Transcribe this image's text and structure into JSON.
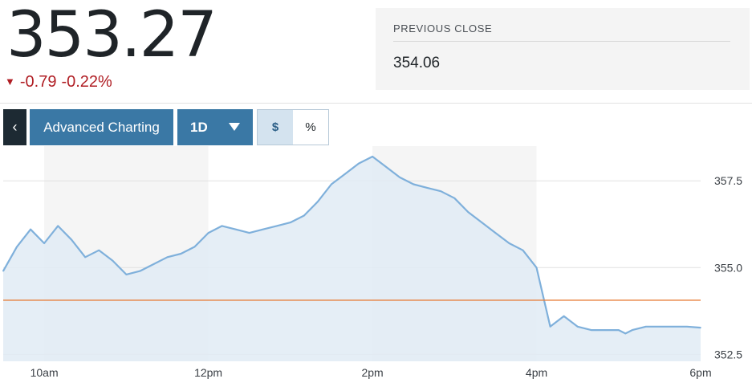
{
  "quote": {
    "last_price": "353.27",
    "change": "-0.79",
    "change_percent": "-0.22%",
    "direction": "down",
    "change_color": "#b01e24"
  },
  "previous_close": {
    "label": "PREVIOUS CLOSE",
    "value": "354.06"
  },
  "toolbar": {
    "back_icon": "chevron-left-icon",
    "back_glyph": "‹",
    "advanced_label": "Advanced Charting",
    "range_label": "1D",
    "range_icon": "caret-down-icon",
    "dollar_label": "$",
    "percent_label": "%",
    "active_mode": "$"
  },
  "chart_data": {
    "type": "area",
    "x_ticks": [
      "10am",
      "12pm",
      "2pm",
      "4pm",
      "6pm"
    ],
    "y_ticks": [
      357.5,
      355.0,
      352.5
    ],
    "y_tick_labels": [
      "357.5",
      "355.0",
      "352.5"
    ],
    "ylim": [
      352.3,
      358.5
    ],
    "previous_close": 354.06,
    "line_color": "#7fb0db",
    "area_color": "#e1ebf5",
    "reference_color": "#e8803c",
    "grid": true,
    "x": [
      "9:30",
      "9:40",
      "9:50",
      "10:00",
      "10:10",
      "10:20",
      "10:30",
      "10:40",
      "10:50",
      "11:00",
      "11:10",
      "11:20",
      "11:30",
      "11:40",
      "11:50",
      "12:00",
      "12:10",
      "12:20",
      "12:30",
      "12:40",
      "12:50",
      "13:00",
      "13:10",
      "13:20",
      "13:30",
      "13:40",
      "13:50",
      "14:00",
      "14:10",
      "14:20",
      "14:30",
      "14:40",
      "14:50",
      "15:00",
      "15:10",
      "15:20",
      "15:30",
      "15:40",
      "15:50",
      "16:00",
      "16:10",
      "16:20",
      "16:30",
      "16:40",
      "16:50",
      "17:00",
      "17:05",
      "17:10",
      "17:20",
      "17:30",
      "17:40",
      "17:50",
      "18:00"
    ],
    "values": [
      354.9,
      355.6,
      356.1,
      355.7,
      356.2,
      355.8,
      355.3,
      355.5,
      355.2,
      354.8,
      354.9,
      355.1,
      355.3,
      355.4,
      355.6,
      356.0,
      356.2,
      356.1,
      356.0,
      356.1,
      356.2,
      356.3,
      356.5,
      356.9,
      357.4,
      357.7,
      358.0,
      358.2,
      357.9,
      357.6,
      357.4,
      357.3,
      357.2,
      357.0,
      356.6,
      356.3,
      356.0,
      355.7,
      355.5,
      355.0,
      353.3,
      353.6,
      353.3,
      353.2,
      353.2,
      353.2,
      353.1,
      353.2,
      353.3,
      353.3,
      353.3,
      353.3,
      353.27
    ]
  }
}
